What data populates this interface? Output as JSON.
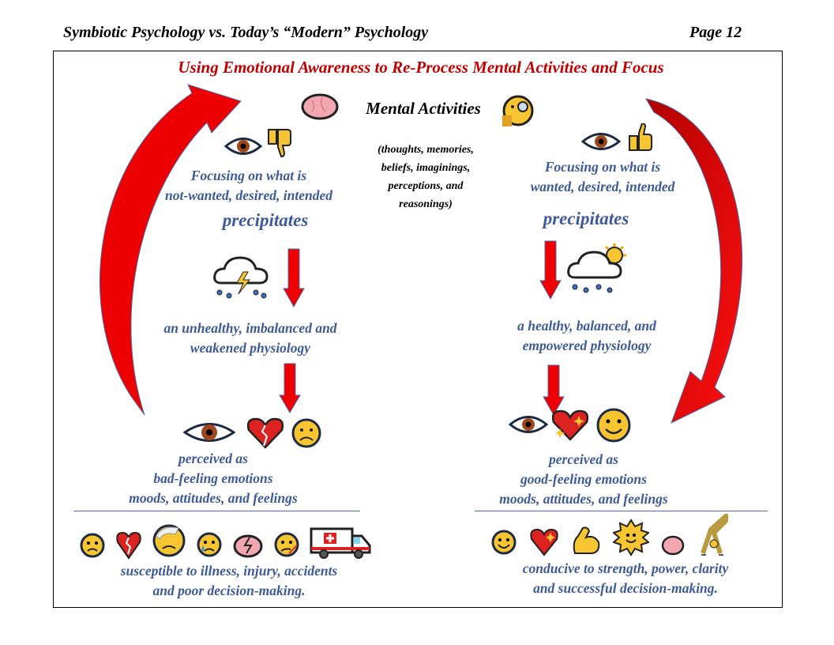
{
  "header": {
    "title": "Symbiotic Psychology vs. Today’s “Modern” Psychology",
    "page": "Page 12"
  },
  "diagram": {
    "title": "Using Emotional Awareness to Re-Process Mental Activities and Focus",
    "center": {
      "heading": "Mental Activities",
      "details": [
        "(thoughts, memories,",
        "beliefs, imaginings,",
        "perceptions, and",
        "reasonings)"
      ]
    },
    "left": {
      "focus": [
        "Focusing on what is",
        "not-wanted, desired, intended"
      ],
      "precipitates": "precipitates",
      "physiology": [
        "an unhealthy, imbalanced and",
        "weakened physiology"
      ],
      "perceived": [
        "perceived as",
        "bad-feeling emotions",
        "moods, attitudes, and feelings"
      ],
      "outcome": [
        "susceptible to illness, injury, accidents",
        "and poor decision-making."
      ]
    },
    "right": {
      "focus": [
        "Focusing on what is",
        "wanted, desired, intended"
      ],
      "precipitates": "precipitates",
      "physiology": [
        "a healthy, balanced, and",
        "empowered physiology"
      ],
      "perceived": [
        "perceived as",
        "good-feeling emotions",
        "moods, attitudes, and feelings"
      ],
      "outcome": [
        "conducive to strength, power, clarity",
        "and successful decision-making."
      ]
    }
  },
  "colors": {
    "title": "#c00000",
    "text": "#3d5a98",
    "arrow": "#e60000",
    "arrow_outline": "#4a6aa8"
  }
}
